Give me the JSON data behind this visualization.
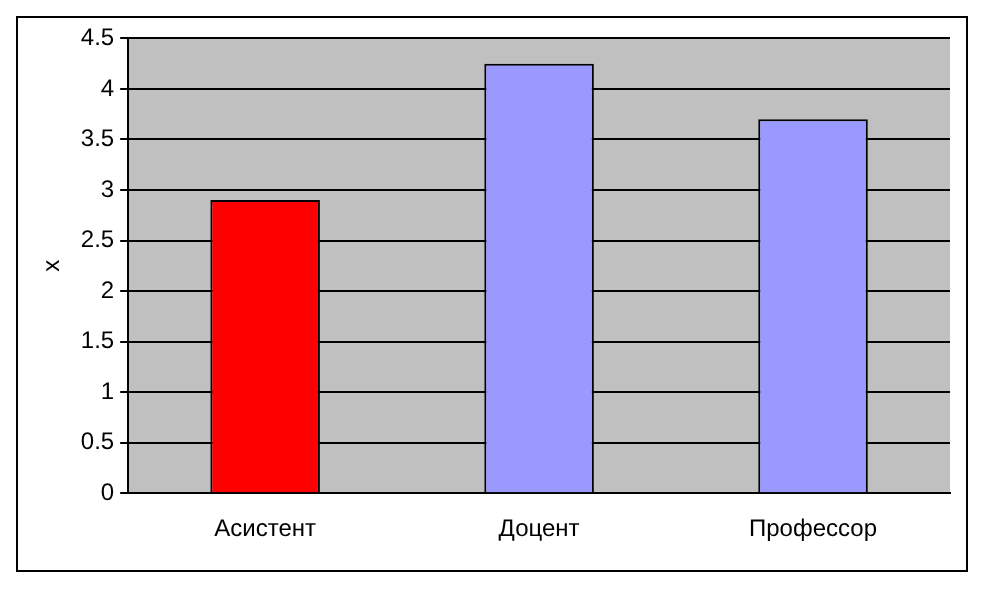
{
  "chart_data": {
    "type": "bar",
    "ylabel": "x",
    "categories": [
      "Асистент",
      "Доцент",
      "Профессор"
    ],
    "values": [
      2.9,
      4.25,
      3.7
    ],
    "colors": [
      "#ff0000",
      "#9999ff",
      "#9999ff"
    ],
    "ylim": [
      0,
      4.5
    ],
    "yticks": [
      0,
      0.5,
      1,
      1.5,
      2,
      2.5,
      3,
      3.5,
      4,
      4.5
    ],
    "grid": "y",
    "legend": false
  }
}
